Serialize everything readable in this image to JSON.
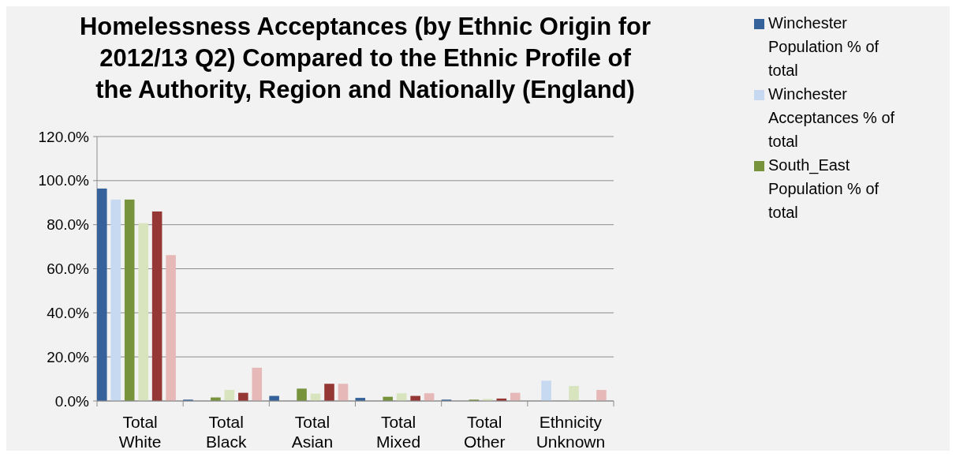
{
  "chart_data": {
    "type": "bar",
    "title": "Homelessness Acceptances (by Ethnic Origin for 2012/13 Q2) Compared to the Ethnic Profile of the Authority, Region and Nationally (England)",
    "categories": [
      "Total White",
      "Total Black",
      "Total Asian",
      "Total Mixed",
      "Total Other",
      "Ethnicity Unknown"
    ],
    "series": [
      {
        "name": "Winchester Population % of total",
        "color": "#35629a",
        "values": [
          96.4,
          0.6,
          2.3,
          1.4,
          0.6,
          0
        ]
      },
      {
        "name": "Winchester Acceptances % of total",
        "color": "#c6d9f0",
        "values": [
          91.4,
          0,
          0,
          0,
          0,
          9.2
        ]
      },
      {
        "name": "South_East Population % of total",
        "color": "#77933c",
        "values": [
          91.4,
          1.6,
          5.6,
          1.9,
          0.6,
          0
        ]
      },
      {
        "color": "#d7e4bd",
        "values": [
          80.7,
          5.0,
          3.3,
          3.5,
          0.9,
          6.8
        ]
      },
      {
        "color": "#953735",
        "values": [
          86.0,
          3.7,
          7.8,
          2.3,
          1.1,
          0
        ]
      },
      {
        "color": "#e6b9b8",
        "values": [
          66.2,
          15.1,
          7.8,
          3.5,
          3.7,
          5.0
        ]
      }
    ],
    "ylim": [
      0,
      120
    ],
    "yticks": [
      {
        "value": 0,
        "label": "0.0%"
      },
      {
        "value": 20,
        "label": "20.0%"
      },
      {
        "value": 40,
        "label": "40.0%"
      },
      {
        "value": 60,
        "label": "60.0%"
      },
      {
        "value": 80,
        "label": "80.0%"
      },
      {
        "value": 100,
        "label": "100.0%"
      },
      {
        "value": 120,
        "label": "120.0%"
      }
    ],
    "grid": "y",
    "legend": "top right"
  }
}
